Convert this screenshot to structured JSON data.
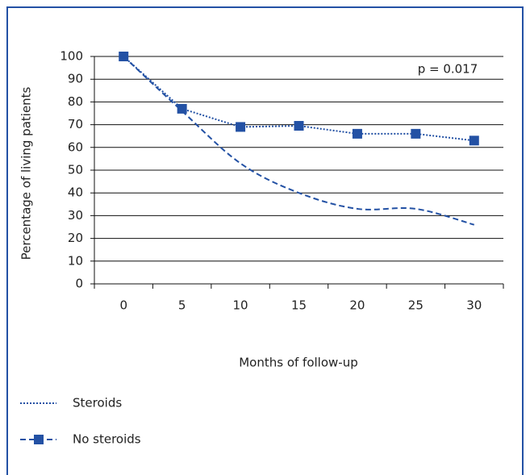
{
  "chart_data": {
    "type": "line",
    "categories": [
      "0",
      "5",
      "10",
      "15",
      "20",
      "25",
      "30"
    ],
    "series": [
      {
        "name": "Steroids",
        "color": "#2351a4",
        "dash": "dotted",
        "marker": "square",
        "values": [
          100,
          77,
          69,
          69.5,
          66,
          66,
          63
        ]
      },
      {
        "name": "No steroids",
        "color": "#2351a4",
        "dash": "dashed",
        "values": [
          100,
          76,
          53,
          40,
          33,
          33,
          26
        ]
      }
    ],
    "ylim": [
      0,
      100
    ],
    "yticks": [
      0,
      10,
      20,
      30,
      40,
      50,
      60,
      70,
      80,
      90,
      100
    ],
    "grid": true,
    "xlabel": "Months of follow-up",
    "ylabel": "Percentage of living patients",
    "annotation": "p = 0.017"
  }
}
